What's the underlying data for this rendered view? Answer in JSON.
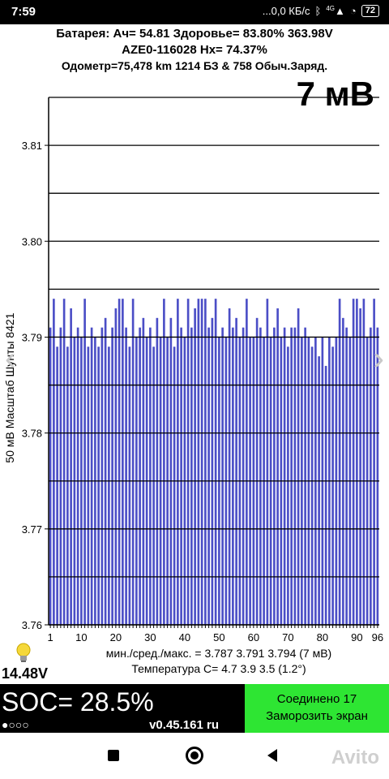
{
  "statusbar": {
    "time": "7:59",
    "net": "...0,0 КБ/с",
    "bt_icon": "bluetooth-icon",
    "signal": "4G",
    "battery": "72"
  },
  "header": {
    "line1": "Батарея:  Ач= 54.81  Здоровье= 83.80%   363.98V",
    "line2": "AZE0-116028   Hx= 74.37%",
    "line3": "Одометр=75,478 km 1214 БЗ & 758 Обыч.Заряд."
  },
  "mv_label": "7 мВ",
  "y_label": "50 мВ Масштаб   Шунты 8421",
  "stats": {
    "line1": "мин./сред./макс. = 3.787 3.791 3.794  (7 мВ)",
    "line2": "Температура С= 4.7  3.9  3.5  (1.2°)"
  },
  "pack_voltage": "14.48V",
  "soc": "SOC= 28.5%",
  "dots": "●○○○",
  "version": "v0.45.161 ru",
  "green_button": {
    "line1": "Соединено 17",
    "line2": "Заморозить экран"
  },
  "watermark": "Avito",
  "colors": {
    "bar": "#4b4ec6",
    "green": "#2ee533"
  },
  "chart_data": {
    "type": "bar",
    "ylim": [
      3.76,
      3.815
    ],
    "yticks": [
      3.76,
      3.77,
      3.78,
      3.79,
      3.8,
      3.81
    ],
    "ytick_labels": [
      "3.76",
      "3.77",
      "3.78",
      "3.79",
      "3.80",
      "3.81"
    ],
    "xticks": [
      1,
      10,
      20,
      30,
      40,
      50,
      60,
      70,
      80,
      90,
      96
    ],
    "xtick_labels": [
      "1",
      "10",
      "20",
      "30",
      "40",
      "50",
      "60",
      "70",
      "80",
      "90",
      "96"
    ],
    "grid": true,
    "x": [
      1,
      2,
      3,
      4,
      5,
      6,
      7,
      8,
      9,
      10,
      11,
      12,
      13,
      14,
      15,
      16,
      17,
      18,
      19,
      20,
      21,
      22,
      23,
      24,
      25,
      26,
      27,
      28,
      29,
      30,
      31,
      32,
      33,
      34,
      35,
      36,
      37,
      38,
      39,
      40,
      41,
      42,
      43,
      44,
      45,
      46,
      47,
      48,
      49,
      50,
      51,
      52,
      53,
      54,
      55,
      56,
      57,
      58,
      59,
      60,
      61,
      62,
      63,
      64,
      65,
      66,
      67,
      68,
      69,
      70,
      71,
      72,
      73,
      74,
      75,
      76,
      77,
      78,
      79,
      80,
      81,
      82,
      83,
      84,
      85,
      86,
      87,
      88,
      89,
      90,
      91,
      92,
      93,
      94,
      95,
      96
    ],
    "values": [
      3.791,
      3.794,
      3.789,
      3.791,
      3.794,
      3.789,
      3.793,
      3.79,
      3.791,
      3.79,
      3.794,
      3.789,
      3.791,
      3.79,
      3.789,
      3.791,
      3.792,
      3.789,
      3.791,
      3.793,
      3.794,
      3.794,
      3.791,
      3.789,
      3.794,
      3.79,
      3.791,
      3.792,
      3.79,
      3.791,
      3.789,
      3.792,
      3.79,
      3.794,
      3.79,
      3.792,
      3.789,
      3.794,
      3.791,
      3.79,
      3.794,
      3.791,
      3.793,
      3.794,
      3.794,
      3.794,
      3.791,
      3.792,
      3.794,
      3.79,
      3.791,
      3.79,
      3.793,
      3.791,
      3.792,
      3.79,
      3.791,
      3.794,
      3.79,
      3.79,
      3.792,
      3.791,
      3.79,
      3.794,
      3.79,
      3.791,
      3.793,
      3.79,
      3.791,
      3.789,
      3.791,
      3.791,
      3.793,
      3.79,
      3.791,
      3.79,
      3.789,
      3.79,
      3.788,
      3.79,
      3.787,
      3.79,
      3.789,
      3.79,
      3.794,
      3.792,
      3.791,
      3.79,
      3.794,
      3.794,
      3.793,
      3.794,
      3.79,
      3.791,
      3.794,
      3.791
    ]
  }
}
